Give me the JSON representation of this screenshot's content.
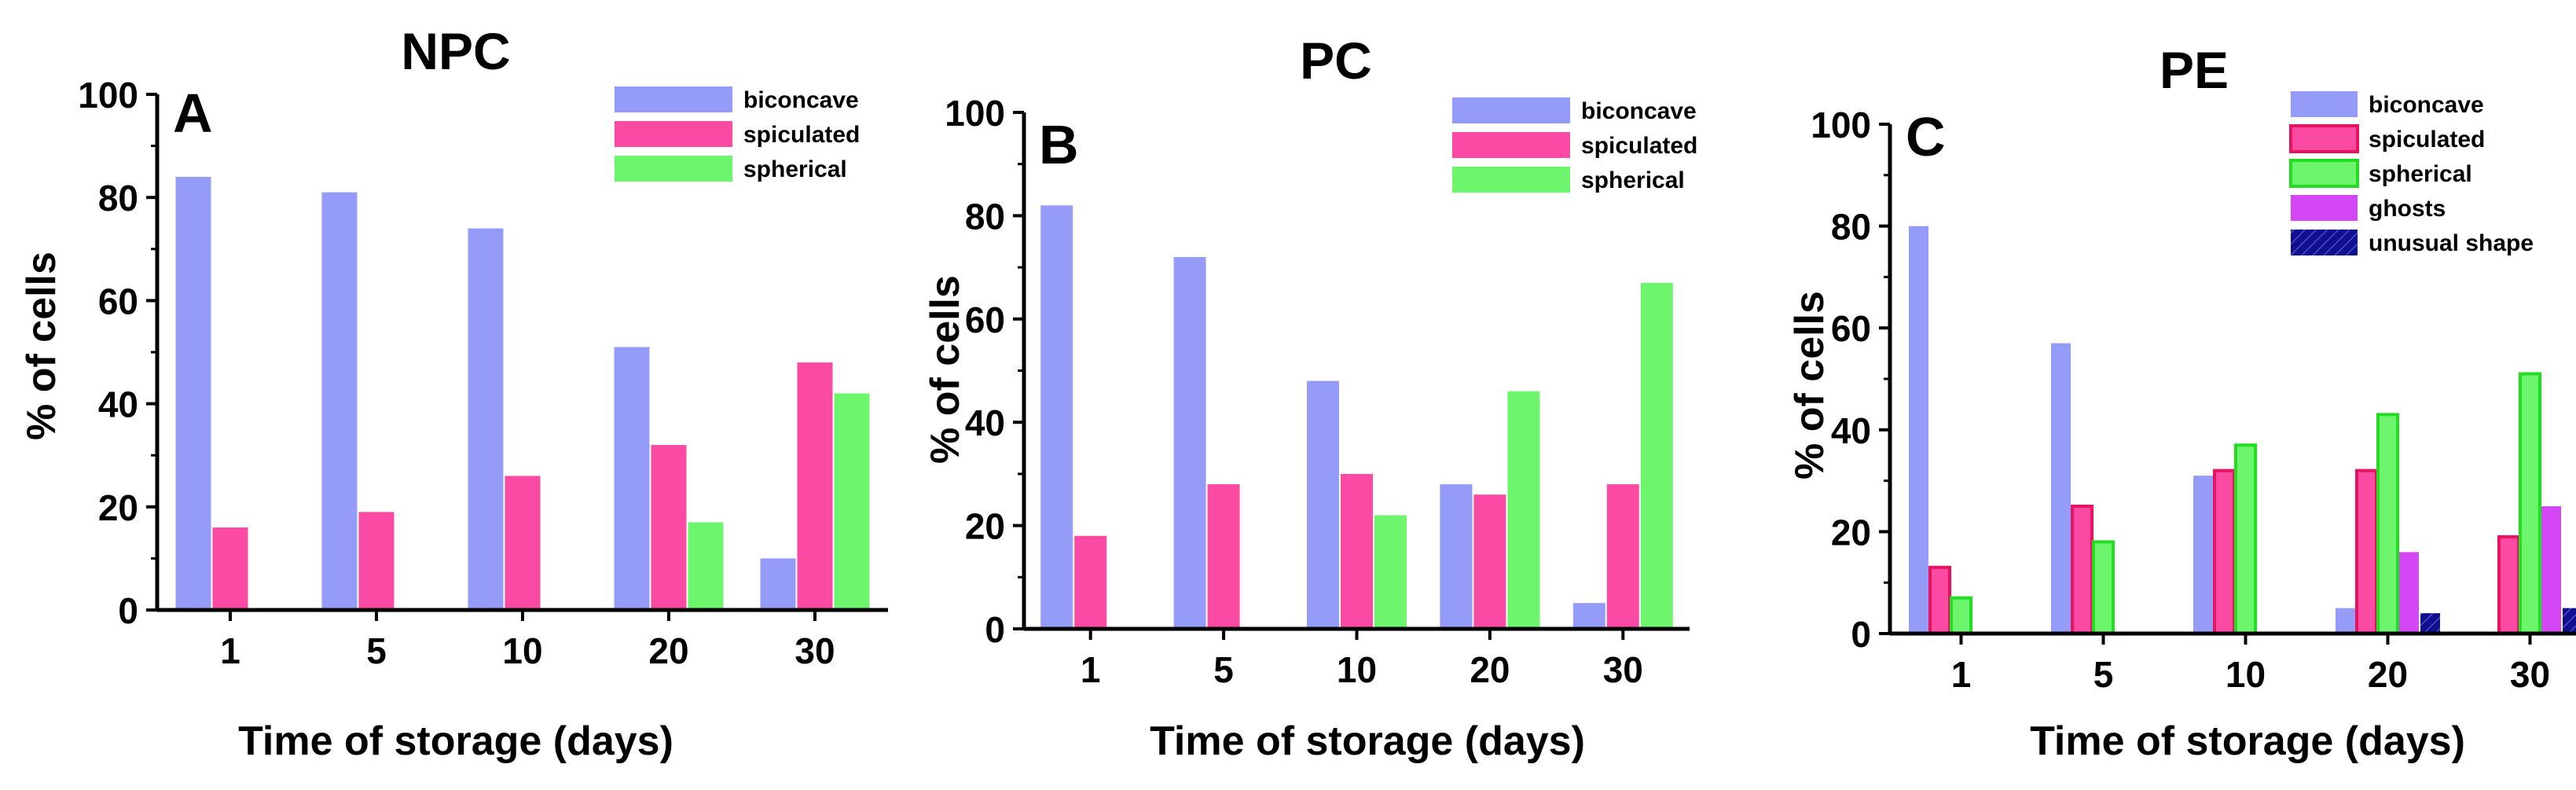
{
  "figure": {
    "xlabel": "Time of storage (days)",
    "ylabel": "% of cells"
  },
  "chart_data": [
    {
      "type": "bar",
      "title": "NPC",
      "panel_label": "A",
      "xlabel": "Time of storage (days)",
      "ylabel": "% of cells",
      "categories": [
        "1",
        "5",
        "10",
        "20",
        "30"
      ],
      "ylim": [
        0,
        100
      ],
      "yticks": [
        "0",
        "20",
        "40",
        "60",
        "80",
        "100"
      ],
      "legend_position": "top-right",
      "series": [
        {
          "name": "biconcave",
          "color": "#959cf7",
          "values": [
            84,
            81,
            74,
            51,
            10
          ]
        },
        {
          "name": "spiculated",
          "color": "#fb4aa4",
          "values": [
            16,
            19,
            26,
            32,
            48
          ]
        },
        {
          "name": "spherical",
          "color": "#6ef56e",
          "values": [
            0,
            0,
            0,
            17,
            42
          ]
        }
      ]
    },
    {
      "type": "bar",
      "title": "PC",
      "panel_label": "B",
      "xlabel": "Time of storage (days)",
      "ylabel": "% of cells",
      "categories": [
        "1",
        "5",
        "10",
        "20",
        "30"
      ],
      "ylim": [
        0,
        100
      ],
      "yticks": [
        "0",
        "20",
        "40",
        "60",
        "80",
        "100"
      ],
      "legend_position": "top-right",
      "series": [
        {
          "name": "biconcave",
          "color": "#959cf7",
          "values": [
            82,
            72,
            48,
            28,
            5
          ]
        },
        {
          "name": "spiculated",
          "color": "#fb4aa4",
          "values": [
            18,
            28,
            30,
            26,
            28
          ]
        },
        {
          "name": "spherical",
          "color": "#6ef56e",
          "values": [
            0,
            0,
            22,
            46,
            67
          ]
        }
      ]
    },
    {
      "type": "bar",
      "title": "PE",
      "panel_label": "C",
      "xlabel": "Time of storage (days)",
      "ylabel": "% of cells",
      "categories": [
        "1",
        "5",
        "10",
        "20",
        "30"
      ],
      "ylim": [
        0,
        100
      ],
      "yticks": [
        "0",
        "20",
        "40",
        "60",
        "80",
        "100"
      ],
      "legend_position": "top-right",
      "series": [
        {
          "name": "biconcave",
          "color": "#959cf7",
          "values": [
            80,
            57,
            31,
            5,
            0
          ]
        },
        {
          "name": "spiculated",
          "color": "#fb4aa4",
          "outline": "#e8135f",
          "values": [
            13,
            25,
            32,
            32,
            19
          ]
        },
        {
          "name": "spherical",
          "color": "#6ef56e",
          "outline": "#22dd22",
          "values": [
            7,
            18,
            37,
            43,
            51
          ]
        },
        {
          "name": "ghosts",
          "color": "#d447f5",
          "values": [
            0,
            0,
            0,
            16,
            25
          ]
        },
        {
          "name": "unusual shape",
          "color": "#10108f",
          "values": [
            0,
            0,
            0,
            4,
            5
          ]
        }
      ]
    }
  ]
}
